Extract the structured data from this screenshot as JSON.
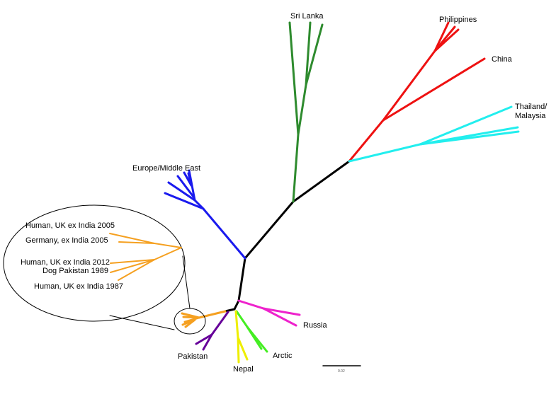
{
  "labels": {
    "sri_lanka": "Sri Lanka",
    "philippines": "Philippines",
    "china": "China",
    "thailand_line1": "Thailand/",
    "thailand_line2": "Malaysia",
    "europe": "Europe/Middle East",
    "russia": "Russia",
    "arctic": "Arctic",
    "nepal": "Nepal",
    "pakistan": "Pakistan"
  },
  "inset": {
    "taxa": [
      "Human, UK ex India 2005",
      "Germany, ex India 2005",
      "Human, UK ex India 2012",
      "Dog Pakistan 1989",
      "Human, UK ex India 1987"
    ]
  },
  "scale_bar": {
    "label": "0.02"
  },
  "colors": {
    "backbone": "#000000",
    "sri_lanka": "#2e8b2e",
    "philippines_china": "#ee1111",
    "thailand": "#22eeee",
    "europe": "#1a1aee",
    "russia": "#ee22cc",
    "arctic": "#44ee22",
    "nepal": "#eeee00",
    "pakistan": "#660099",
    "india": "#f5a020"
  }
}
